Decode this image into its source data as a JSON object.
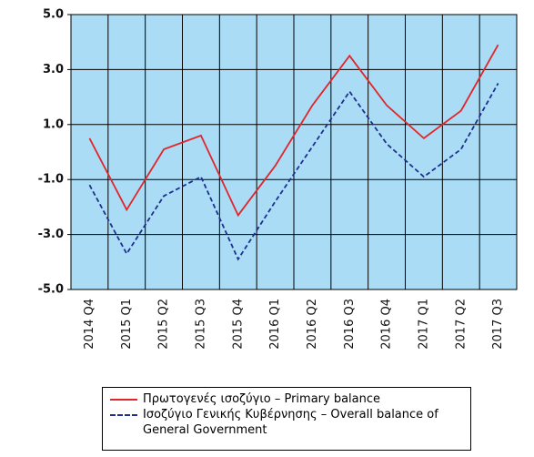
{
  "chart_data": {
    "type": "line",
    "categories": [
      "2014 Q4",
      "2015 Q1",
      "2015 Q2",
      "2015 Q3",
      "2015 Q4",
      "2016 Q1",
      "2016 Q2",
      "2016 Q3",
      "2016 Q4",
      "2017 Q1",
      "2017 Q2",
      "2017 Q3"
    ],
    "series": [
      {
        "name": "Πρωτογενές ισοζύγιο – Primary balance",
        "color": "#e0262b",
        "dash": false,
        "values": [
          0.5,
          -2.1,
          0.1,
          0.6,
          -2.3,
          -0.5,
          1.7,
          3.5,
          1.7,
          0.5,
          1.5,
          3.9
        ]
      },
      {
        "name": "Ισοζύγιο Γενικής Κυβέρνησης – Overall balance of General Government",
        "color": "#1f2f8f",
        "dash": true,
        "values": [
          -1.2,
          -3.7,
          -1.6,
          -0.9,
          -3.9,
          -1.8,
          0.2,
          2.2,
          0.3,
          -0.9,
          0.1,
          2.5
        ]
      }
    ],
    "ylim": [
      -5,
      5
    ],
    "yticks": [
      {
        "value": -5,
        "label": "-5.0"
      },
      {
        "value": -3,
        "label": "-3.0"
      },
      {
        "value": -1,
        "label": "-1.0"
      },
      {
        "value": 1,
        "label": "1.0"
      },
      {
        "value": 3,
        "label": "3.0"
      },
      {
        "value": 5,
        "label": "5.0"
      }
    ],
    "grid": true,
    "background": "#aadcf5"
  }
}
